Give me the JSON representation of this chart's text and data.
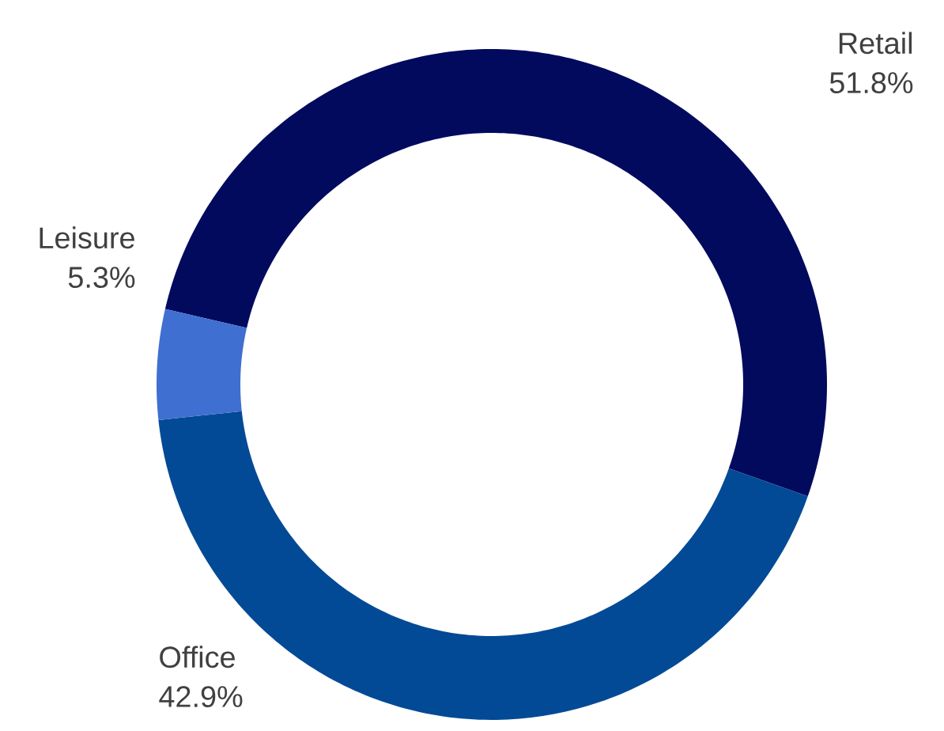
{
  "chart_data": {
    "type": "donut",
    "categories": [
      "Retail",
      "Office",
      "Leisure"
    ],
    "values": [
      51.8,
      42.9,
      5.3
    ],
    "value_labels": [
      "51.8%",
      "42.9%",
      "5.3%"
    ],
    "colors": [
      "#020a5e",
      "#034a96",
      "#3f6fd0"
    ]
  }
}
